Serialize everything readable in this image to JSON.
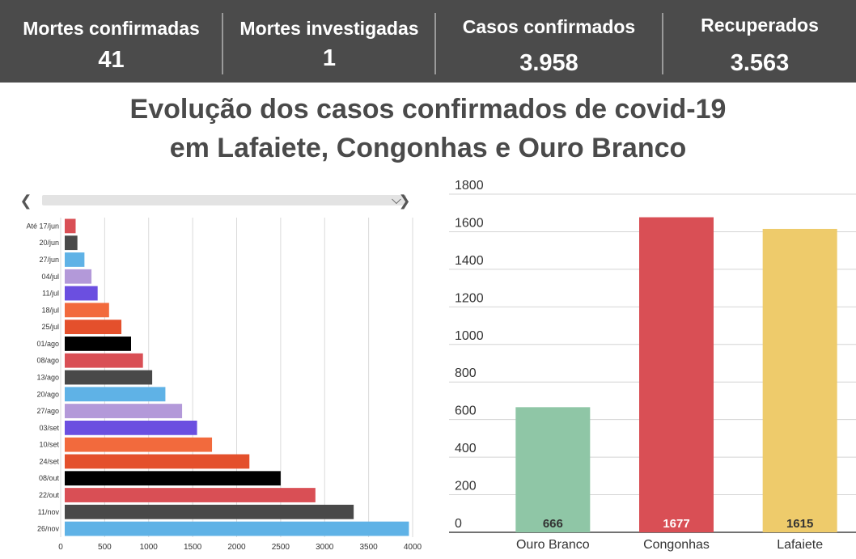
{
  "stats": [
    {
      "label": "Mortes confirmadas",
      "value": "41"
    },
    {
      "label": "Mortes investigadas",
      "value": "1"
    },
    {
      "label": "Casos confirmados",
      "value": "3.958"
    },
    {
      "label": "Recuperados",
      "value": "3.563"
    }
  ],
  "title_line1": "Evolução dos casos confirmados de covid-19",
  "title_line2": "em Lafaiete, Congonhas e Ouro Branco",
  "icons": {
    "scroll_left": "chevron-left-icon",
    "scroll_right": "chevron-right-icon",
    "dropdown": "chevron-down-icon"
  },
  "chart_data": [
    {
      "type": "bar",
      "orientation": "horizontal",
      "categories": [
        "Até 17/jun",
        "20/jun",
        "27/jun",
        "04/jul",
        "11/jul",
        "18/jul",
        "25/jul",
        "01/ago",
        "08/ago",
        "13/ago",
        "20/ago",
        "27/ago",
        "03/set",
        "10/set",
        "24/set",
        "08/out",
        "22/out",
        "11/nov",
        "26/nov"
      ],
      "values": [
        170,
        190,
        270,
        350,
        420,
        550,
        690,
        800,
        935,
        1040,
        1190,
        1380,
        1550,
        1720,
        2145,
        2500,
        2895,
        3330,
        3958
      ],
      "colors": [
        "#d94f55",
        "#494949",
        "#5fb2e6",
        "#b399d9",
        "#6b4fe0",
        "#f26a3d",
        "#e4502c",
        "#000000",
        "#d94f55",
        "#494949",
        "#5fb2e6",
        "#b399d9",
        "#6b4fe0",
        "#f26a3d",
        "#e4502c",
        "#000000",
        "#d94f55",
        "#494949",
        "#5fb2e6"
      ],
      "xticks": [
        0,
        500,
        1000,
        1500,
        2000,
        2500,
        3000,
        3500,
        4000
      ],
      "xlim": [
        0,
        4000
      ],
      "grid": true
    },
    {
      "type": "bar",
      "categories": [
        "Ouro Branco",
        "Congonhas",
        "Lafaiete"
      ],
      "values": [
        666,
        1677,
        1615
      ],
      "data_labels": [
        "666",
        "1677",
        "1615"
      ],
      "colors": [
        "#8fc6a6",
        "#d94f55",
        "#eecb6b"
      ],
      "label_colors": [
        "#333333",
        "#ffffff",
        "#333333"
      ],
      "yticks": [
        0,
        200,
        400,
        600,
        800,
        1000,
        1200,
        1400,
        1600,
        1800
      ],
      "ylim": [
        0,
        1800
      ],
      "grid": true
    }
  ]
}
